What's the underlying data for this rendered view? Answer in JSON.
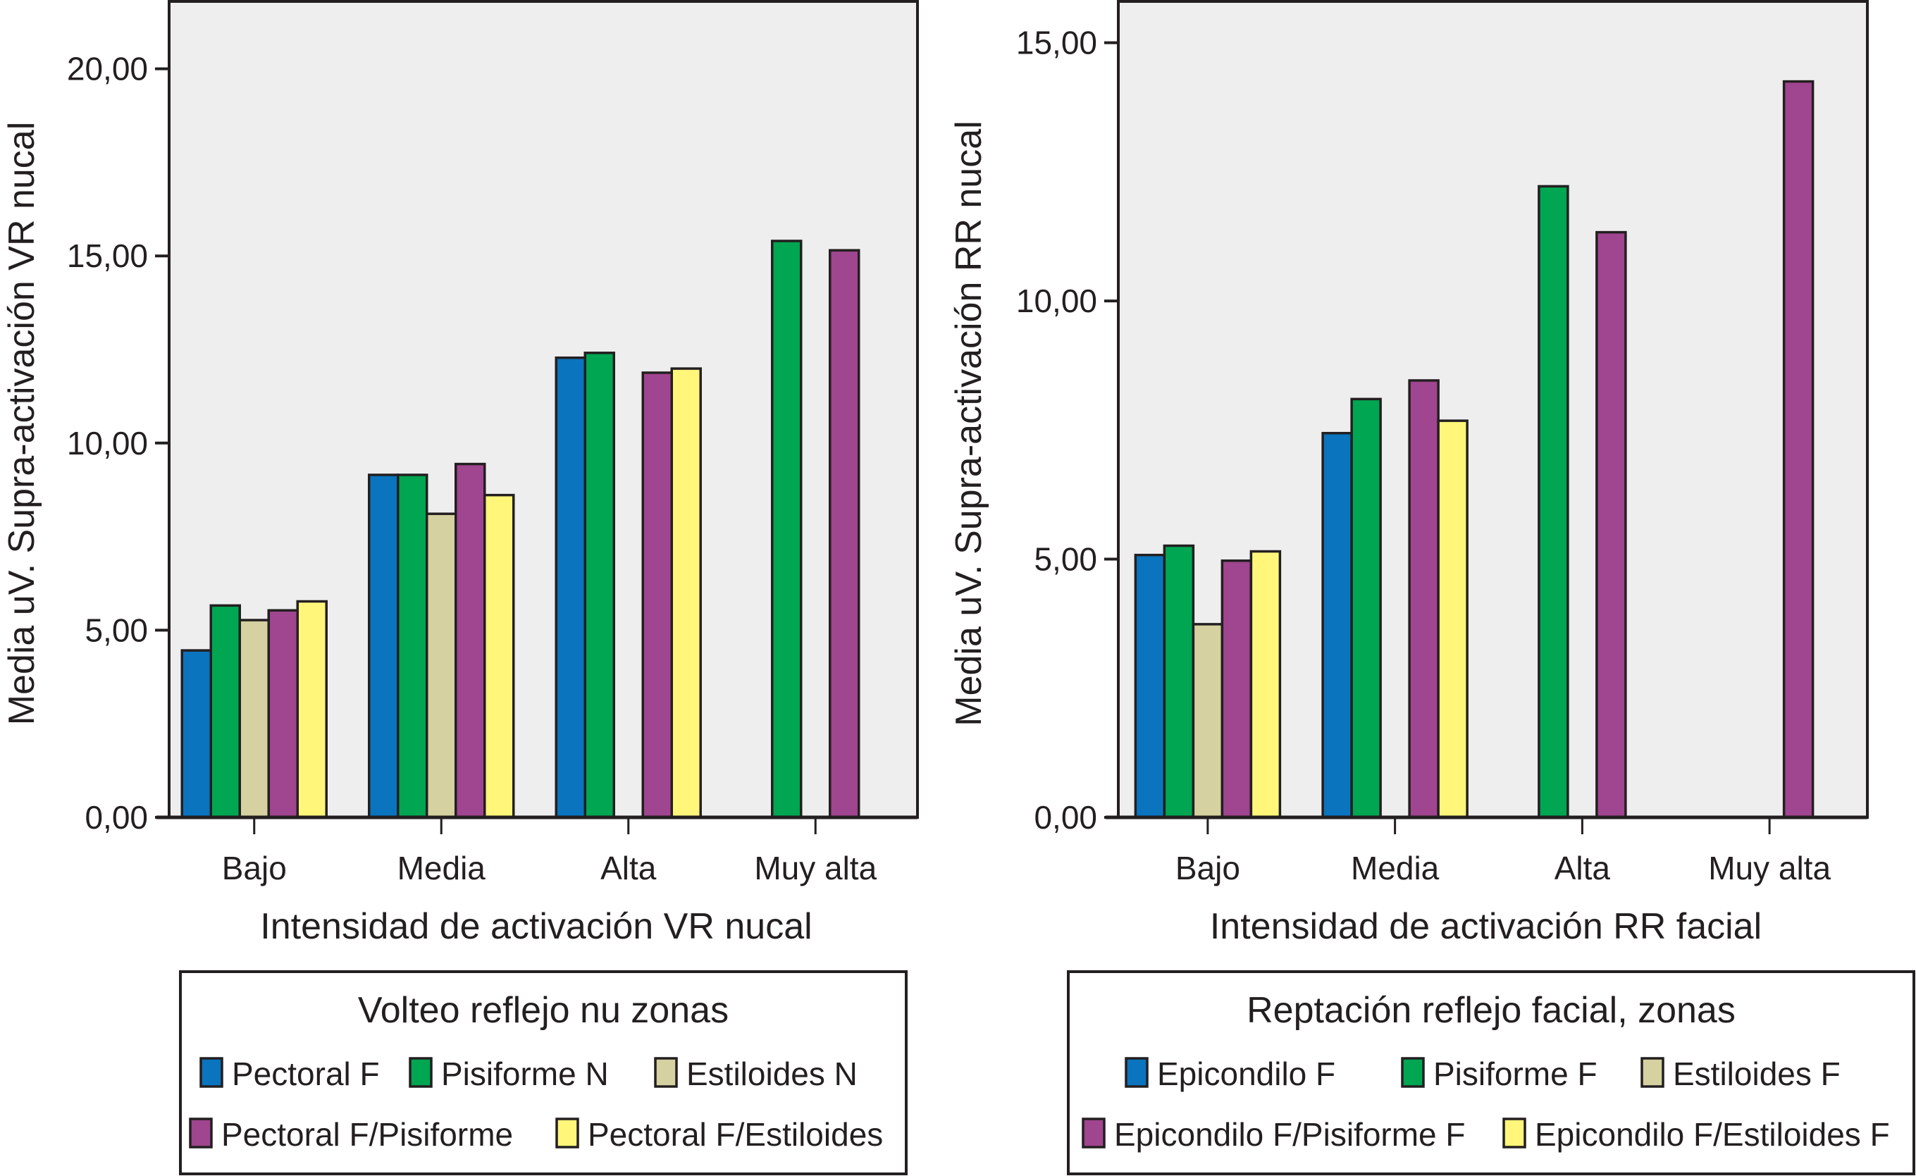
{
  "chart_data": [
    {
      "type": "bar",
      "title": "",
      "xlabel": "Intensidad de activación VR nucal",
      "ylabel": "Media uV. Supra-activación VR nucal",
      "ylim": [
        0,
        21.8
      ],
      "yticks": [
        0,
        5,
        10,
        15,
        20
      ],
      "ytick_labels": [
        "0,00",
        "5,00",
        "10,00",
        "15,00",
        "20,00"
      ],
      "grid": false,
      "categories": [
        "Bajo",
        "Media",
        "Alta",
        "Muy alta"
      ],
      "legend": {
        "title": "Volteo reflejo nu zonas",
        "placement": "bottom"
      },
      "series": [
        {
          "name": "Pectoral F",
          "color": "#0a74bf",
          "values": [
            4.46,
            9.15,
            12.28,
            null
          ]
        },
        {
          "name": "Pisiforme N",
          "color": "#00a651",
          "values": [
            5.66,
            9.15,
            12.41,
            15.4
          ]
        },
        {
          "name": "Estiloides N",
          "color": "#d5d1a1",
          "values": [
            5.27,
            8.11,
            null,
            null
          ]
        },
        {
          "name": "Pectoral F/Pisiforme",
          "color": "#a0458f",
          "values": [
            5.53,
            9.44,
            11.88,
            15.15
          ]
        },
        {
          "name": "Pectoral F/Estiloides",
          "color": "#fff67a",
          "values": [
            5.77,
            8.61,
            11.99,
            null
          ]
        }
      ]
    },
    {
      "type": "bar",
      "title": "",
      "xlabel": "Intensidad de activación RR facial",
      "ylabel": "Media uV. Supra-activación RR nucal",
      "ylim": [
        0,
        15.8
      ],
      "yticks": [
        0,
        5,
        10,
        15
      ],
      "ytick_labels": [
        "0,00",
        "5,00",
        "10,00",
        "15,00"
      ],
      "grid": false,
      "categories": [
        "Bajo",
        "Media",
        "Alta",
        "Muy alta"
      ],
      "legend": {
        "title": "Reptación reflejo facial, zonas",
        "placement": "bottom"
      },
      "series": [
        {
          "name": "Epicondilo F",
          "color": "#0a74bf",
          "values": [
            5.08,
            7.44,
            null,
            null
          ]
        },
        {
          "name": "Pisiforme F",
          "color": "#00a651",
          "values": [
            5.26,
            8.1,
            12.22,
            null
          ]
        },
        {
          "name": "Estiloides F",
          "color": "#d5d1a1",
          "values": [
            3.74,
            null,
            null,
            null
          ]
        },
        {
          "name": "Epicondilo F/Pisiforme F",
          "color": "#a0458f",
          "values": [
            4.97,
            8.46,
            11.33,
            14.25
          ]
        },
        {
          "name": "Epicondilo F/Estiloides F",
          "color": "#fff67a",
          "values": [
            5.15,
            7.68,
            null,
            null
          ]
        }
      ]
    }
  ],
  "colors": {
    "plot_background": "#eeeeee",
    "axis": "#231f20"
  }
}
